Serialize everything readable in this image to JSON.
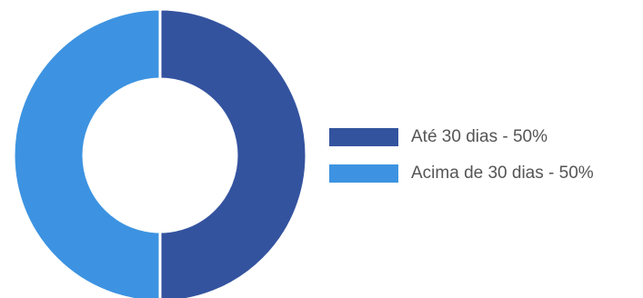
{
  "chart_data": {
    "type": "pie",
    "donut": true,
    "legend_position": "right",
    "series": [
      {
        "name": "Até 30 dias",
        "value": 50,
        "color": "#34539f"
      },
      {
        "name": "Acima de 30 dias",
        "value": 50,
        "color": "#3d93e1"
      }
    ],
    "legend": [
      {
        "label": "Até 30 dias - 50%",
        "color": "#34539f"
      },
      {
        "label": "Acima de 30 dias - 50%",
        "color": "#3d93e1"
      }
    ]
  }
}
